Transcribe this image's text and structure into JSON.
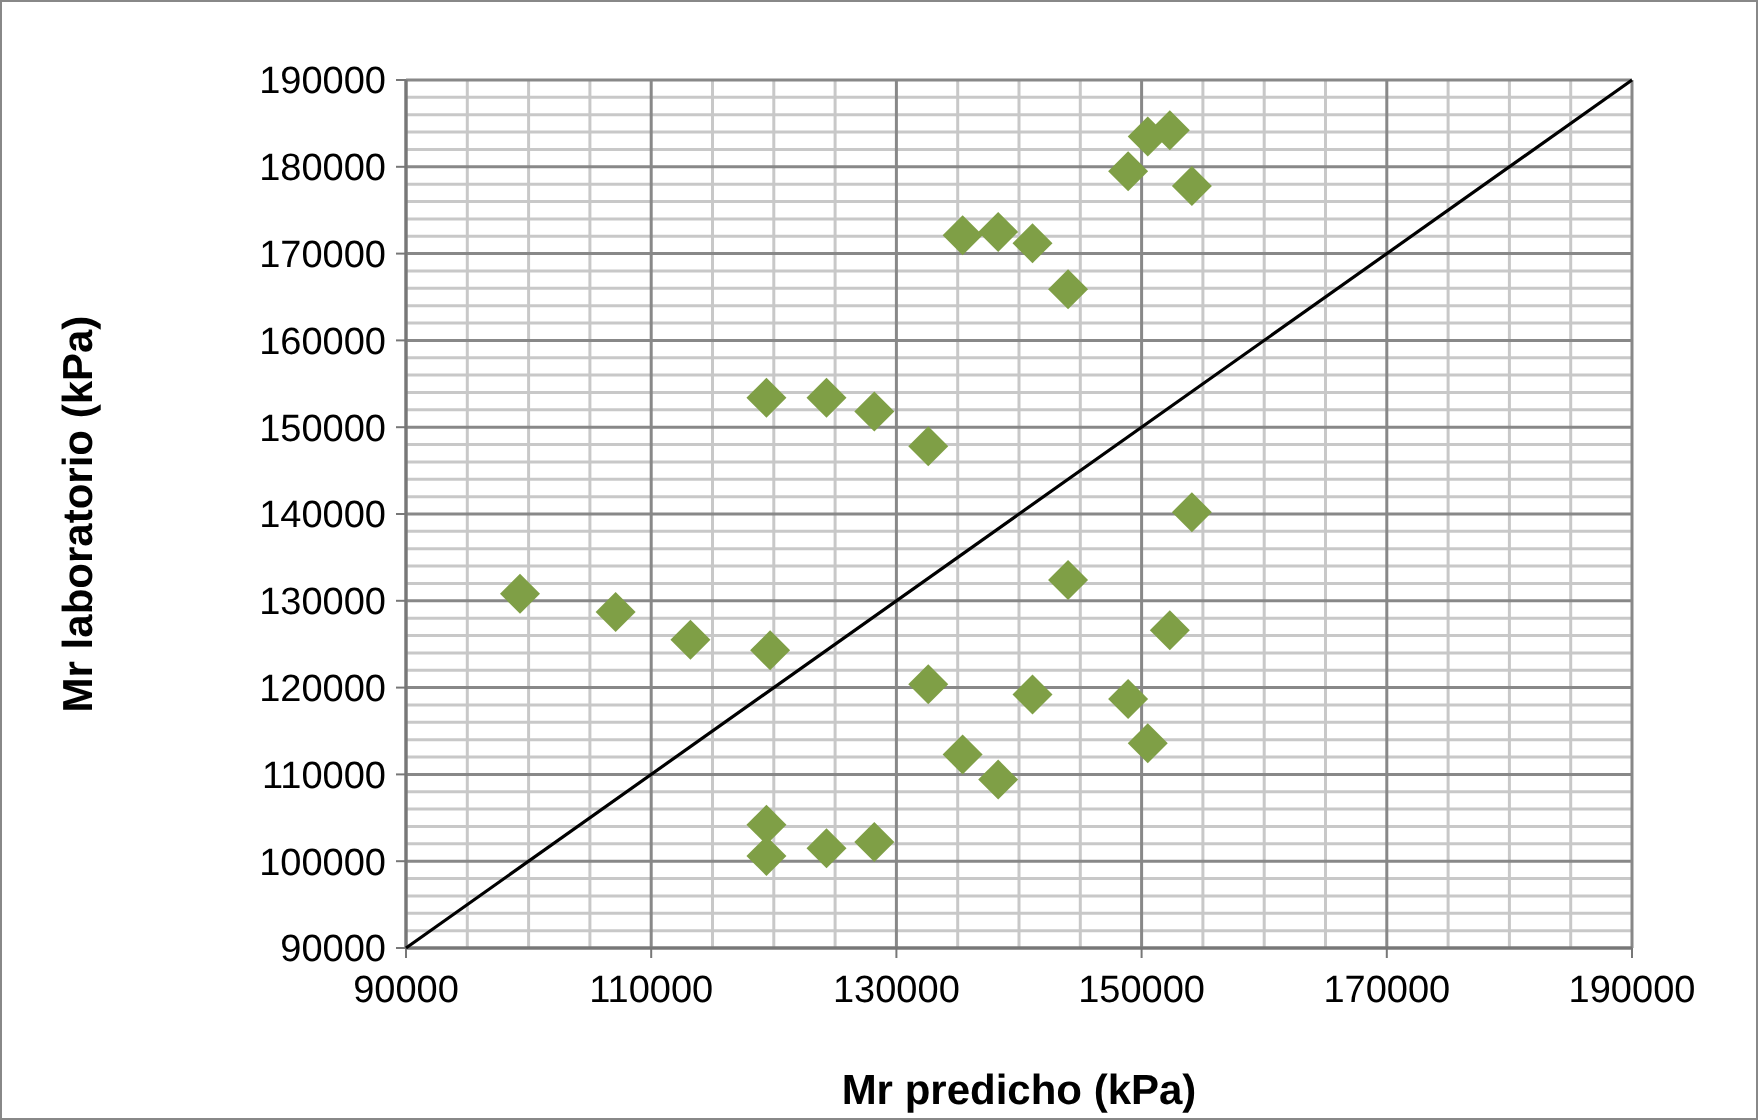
{
  "chart_data": {
    "type": "scatter",
    "xlabel": "Mr predicho (kPa)",
    "ylabel": "Mr laboratorio (kPa)",
    "xlim": [
      90000,
      190000
    ],
    "xticks": [
      90000,
      110000,
      130000,
      150000,
      170000,
      190000
    ],
    "ylim": [
      90000,
      190000
    ],
    "yticks": [
      90000,
      100000,
      110000,
      120000,
      130000,
      140000,
      150000,
      160000,
      170000,
      180000,
      190000
    ],
    "grid": true,
    "marker": "diamond",
    "series": [
      {
        "color": "#7f9f46",
        "x": [
          99300,
          107100,
          113200,
          119700,
          119400,
          119400,
          124300,
          128200,
          119400,
          124300,
          128200,
          132600,
          132600,
          135400,
          138300,
          141100,
          144000,
          148900,
          150500,
          152300,
          154100,
          135400,
          138300,
          141100,
          144000,
          148900,
          150500,
          152300,
          154100
        ],
        "values": [
          130800,
          128700,
          125500,
          124300,
          104200,
          100600,
          101500,
          102200,
          153400,
          153400,
          151800,
          147800,
          120400,
          112300,
          109400,
          119200,
          132400,
          118700,
          113600,
          126600,
          140200,
          172100,
          172500,
          171200,
          165900,
          179500,
          183500,
          184200,
          177800
        ]
      },
      {
        "type": "line",
        "color": "#000000",
        "marker": "none",
        "line_style": "solid",
        "x": [
          90000,
          190000
        ],
        "values": [
          90000,
          190000
        ]
      }
    ]
  }
}
